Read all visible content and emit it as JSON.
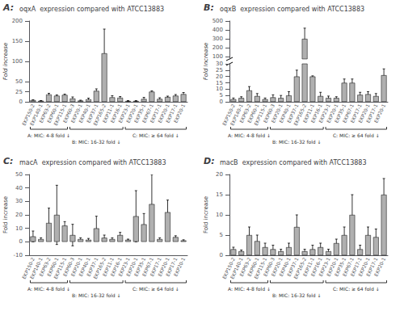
{
  "chart_data": [
    {
      "type": "bar",
      "annotations": [
        "A:"
      ],
      "title": "oqxA  expression compared with ATCC13883",
      "ylabel": "Fold increase",
      "categories": [
        "EKP150-2",
        "EKP140-1",
        "EKP63-2",
        "EKP60-1",
        "EKP115-1",
        "EKP60-3",
        "EKP20-1",
        "EKP40-1",
        "EKP37-1",
        "EKP165-2",
        "EKP11-1",
        "EKP16-1",
        "EKP23-1",
        "EKP20-1",
        "EKP35-1",
        "EKP67-1",
        "EKP17-1",
        "EKP20-1",
        "EKP17-1",
        "EKP20-1"
      ],
      "values": [
        4,
        2.5,
        18,
        15,
        17,
        8,
        3,
        6,
        27,
        120,
        11,
        10,
        2,
        2,
        7,
        25,
        7,
        12,
        15,
        19
      ],
      "errors": [
        1,
        0.5,
        3,
        2,
        2,
        4,
        1,
        3,
        5,
        60,
        4,
        3,
        1,
        1,
        4,
        2,
        3,
        2,
        3,
        4
      ],
      "color": "#b0b0b0",
      "ylim": [
        0,
        200
      ],
      "yticks": [
        0,
        25,
        50,
        100,
        150,
        200
      ],
      "grid": false,
      "groups": [
        {
          "label": "A: MIC: 4-8 fold ↓",
          "range": [
            0,
            4
          ]
        },
        {
          "label": "B: MIC: 16-32 fold ↓",
          "range": [
            5,
            11
          ]
        },
        {
          "label": "C: MIC: ≥ 64 fold ↓",
          "range": [
            12,
            19
          ]
        }
      ]
    },
    {
      "type": "bar",
      "annotations": [
        "B:"
      ],
      "title": "oqxB  expression compared with ATCC13883",
      "ylabel": "Fold Increase",
      "categories": [
        "EKP150-2",
        "EKP140-1",
        "EKP63-2",
        "EKP60-1",
        "EKP115-1",
        "EKP60-3",
        "EKP20-1",
        "EKP40-1",
        "EKP37-1",
        "EKP165-2",
        "EKP11-1",
        "EKP16-1",
        "EKP23-1",
        "EKP20-1",
        "EKP35-1",
        "EKP67-1",
        "EKP17-1",
        "EKP20-1",
        "EKP17-1",
        "EKP20-1"
      ],
      "values": [
        2,
        3,
        9,
        4.5,
        2,
        3.5,
        3,
        5,
        20,
        300,
        20,
        4.5,
        3,
        3,
        15,
        15,
        5.5,
        6,
        4.5,
        21
      ],
      "errors": [
        1,
        1,
        3,
        2,
        1,
        2,
        2,
        3,
        5,
        120,
        0.5,
        3,
        1.5,
        1,
        3,
        3,
        2,
        2,
        2,
        5
      ],
      "color": "#b0b0b0",
      "ylim": [
        0,
        500
      ],
      "y_break": [
        30,
        75
      ],
      "yticks": [
        0,
        5,
        10,
        15,
        20,
        25,
        30,
        100,
        200,
        300,
        400,
        500
      ],
      "grid": false,
      "groups": [
        {
          "label": "A: MIC: 4-8 fold ↓",
          "range": [
            0,
            4
          ]
        },
        {
          "label": "B: MIC: 16-32 fold ↓",
          "range": [
            5,
            11
          ]
        },
        {
          "label": "C: MIC: ≥ 64 fold ↓",
          "range": [
            12,
            19
          ]
        }
      ]
    },
    {
      "type": "bar",
      "annotations": [
        "C:"
      ],
      "title": "macA  expression compared with ATCC13883",
      "ylabel": "Fold increase",
      "categories": [
        "EKP150-2",
        "EKP140-1",
        "EKP63-2",
        "EKP60-1",
        "EKP115-1",
        "EKP60-3",
        "EKP20-1",
        "EKP40-1",
        "EKP37-1",
        "EKP165-2",
        "EKP11-1",
        "EKP16-1",
        "EKP23-1",
        "EKP20-1",
        "EKP35-1",
        "EKP67-1",
        "EKP17-1",
        "EKP20-1",
        "EKP17-1",
        "EKP20-1"
      ],
      "values": [
        4,
        2,
        14,
        20,
        12,
        5,
        2,
        1.5,
        10,
        3,
        2,
        5,
        1.5,
        19,
        13,
        28,
        2,
        22,
        3.5,
        1
      ],
      "errors": [
        4,
        1,
        11,
        22,
        3,
        8,
        1,
        1,
        9,
        2,
        1,
        2,
        0.5,
        19,
        8,
        22,
        1,
        9,
        1,
        0.5
      ],
      "color": "#b0b0b0",
      "ylim": [
        -10,
        50
      ],
      "yticks": [
        -10,
        0,
        10,
        20,
        30,
        40,
        50
      ],
      "grid": false,
      "groups": [
        {
          "label": "A: MIC: 4-8 fold ↓",
          "range": [
            0,
            4
          ]
        },
        {
          "label": "B: MIC: 16-32 fold ↓",
          "range": [
            5,
            11
          ]
        },
        {
          "label": "C: MIC: ≥ 64 fold ↓",
          "range": [
            12,
            19
          ]
        }
      ]
    },
    {
      "type": "bar",
      "annotations": [
        "D:"
      ],
      "title": "macB  expression compared with ATCC13883",
      "ylabel": "Fold increase",
      "categories": [
        "EKP150-2",
        "EKP140-1",
        "EKP63-2",
        "EKP60-1",
        "EKP115-1",
        "EKP60-3",
        "EKP20-1",
        "EKP40-1",
        "EKP37-1",
        "EKP165-2",
        "EKP11-1",
        "EKP16-1",
        "EKP23-1",
        "EKP20-1",
        "EKP35-1",
        "EKP67-1",
        "EKP17-1",
        "EKP20-1",
        "EKP17-1",
        "EKP20-1"
      ],
      "values": [
        1.5,
        1,
        5,
        3.5,
        2,
        1.5,
        1,
        2,
        7,
        1,
        1.5,
        2,
        1,
        3,
        5,
        10,
        1.5,
        5,
        4.5,
        15
      ],
      "errors": [
        0.5,
        0.3,
        2,
        1.5,
        1,
        1,
        0.5,
        1,
        3,
        0.5,
        1,
        1,
        0.5,
        1,
        2,
        5,
        1,
        2,
        2,
        4
      ],
      "color": "#b0b0b0",
      "ylim": [
        0,
        20
      ],
      "yticks": [
        0,
        5,
        10,
        15,
        20
      ],
      "grid": false,
      "groups": [
        {
          "label": "A: MIC: 4-8 fold ↓",
          "range": [
            0,
            4
          ]
        },
        {
          "label": "B: MIC: 16-32 fold ↓",
          "range": [
            5,
            11
          ]
        },
        {
          "label": "C: MIC: ≥ 64 fold ↓",
          "range": [
            12,
            19
          ]
        }
      ]
    }
  ]
}
